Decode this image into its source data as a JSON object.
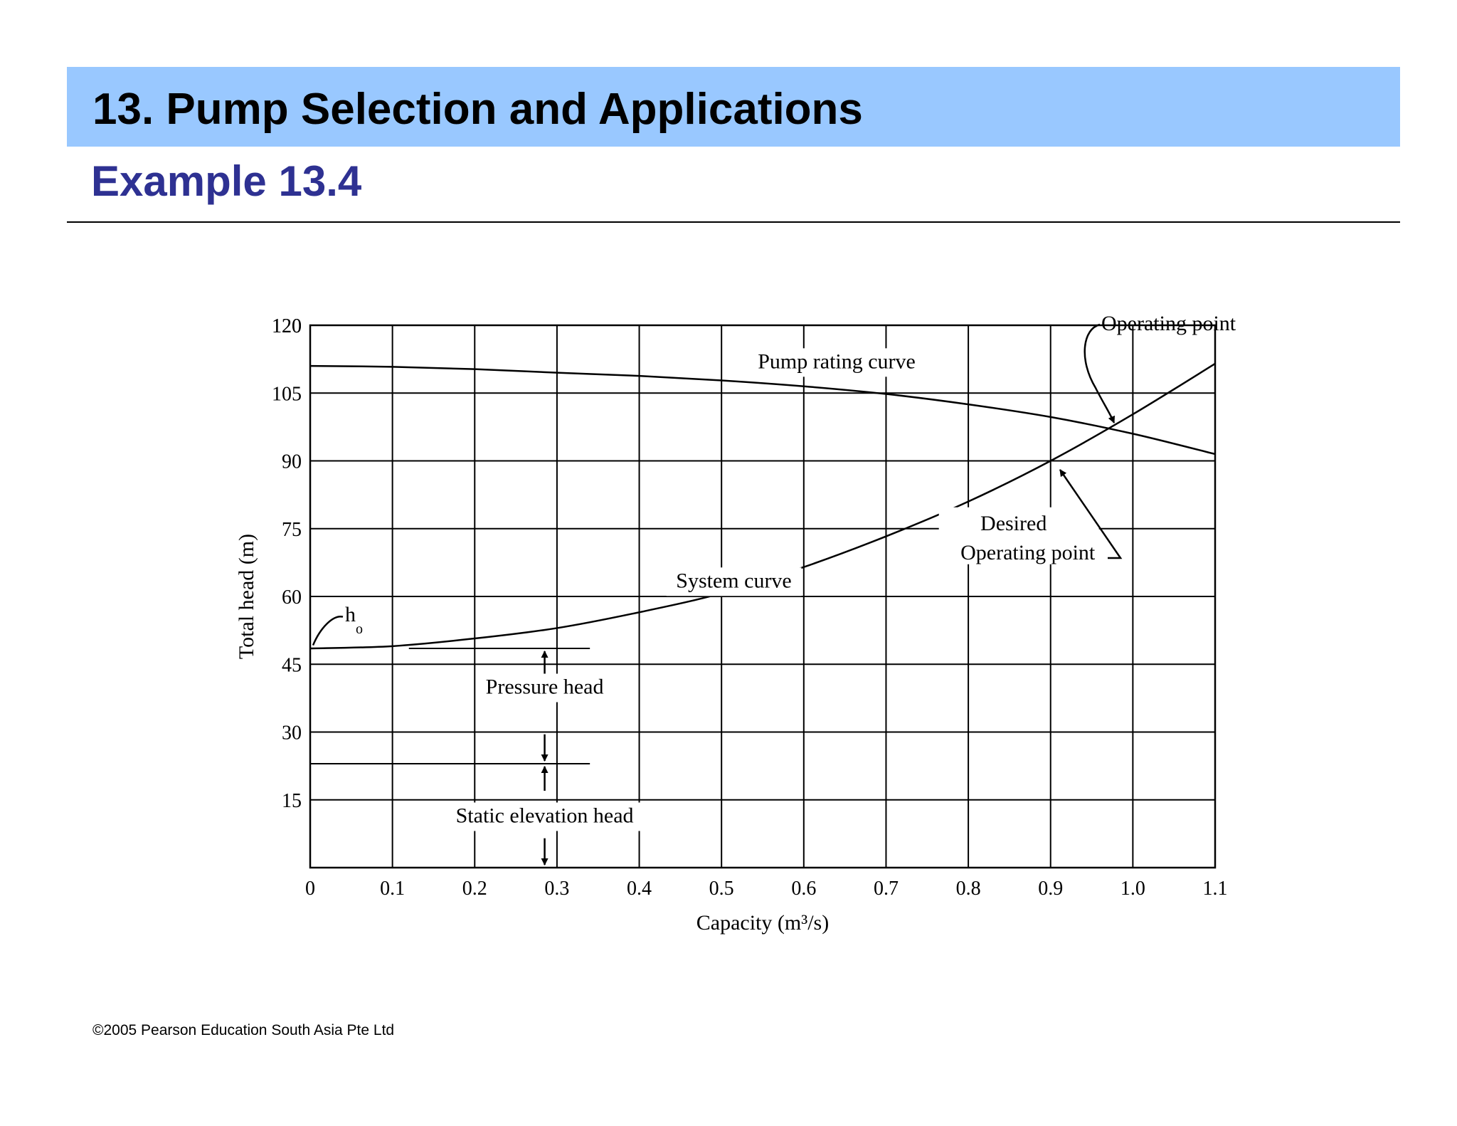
{
  "slide": {
    "title": "13. Pump  Selection and Applications",
    "subtitle": "Example 13.4",
    "footer": "©2005 Pearson Education South Asia Pte Ltd"
  },
  "chart_data": {
    "type": "line",
    "xlabel": "Capacity (m³/s)",
    "ylabel": "Total head (m)",
    "xlim": [
      0,
      1.1
    ],
    "ylim": [
      0,
      120
    ],
    "xticks": [
      "0",
      "0.1",
      "0.2",
      "0.3",
      "0.4",
      "0.5",
      "0.6",
      "0.7",
      "0.8",
      "0.9",
      "1.0",
      "1.1"
    ],
    "yticks": [
      "15",
      "30",
      "45",
      "60",
      "75",
      "90",
      "105",
      "120"
    ],
    "grid": true,
    "series": [
      {
        "label": "Pump rating curve",
        "x": [
          0,
          0.1,
          0.2,
          0.3,
          0.4,
          0.5,
          0.6,
          0.7,
          0.8,
          0.9,
          1.0,
          1.1
        ],
        "y": [
          111,
          110.8,
          110.3,
          109.5,
          108.8,
          107.8,
          106.5,
          104.8,
          102.5,
          99.7,
          96,
          91.5
        ]
      },
      {
        "label": "System curve",
        "x": [
          0,
          0.1,
          0.2,
          0.3,
          0.4,
          0.5,
          0.6,
          0.7,
          0.8,
          0.9,
          1.0,
          1.1
        ],
        "y": [
          48.5,
          49,
          50.7,
          53,
          56.5,
          60.7,
          66.5,
          73.3,
          81,
          90,
          100.3,
          111.5
        ]
      }
    ],
    "annotations": [
      {
        "text": "Operating point"
      },
      {
        "text": "Desired"
      },
      {
        "text": "Operating point"
      },
      {
        "text": "h"
      },
      {
        "text": "o"
      },
      {
        "text": "Pressure head"
      },
      {
        "text": "Static elevation head"
      }
    ],
    "reference_lines": [
      {
        "name": "pressure-head-top-line",
        "y": 48.5,
        "x": [
          0.12,
          0.34
        ]
      },
      {
        "name": "pressure-head-bottom-line",
        "y": 23,
        "x": [
          0,
          0.34
        ]
      }
    ]
  }
}
